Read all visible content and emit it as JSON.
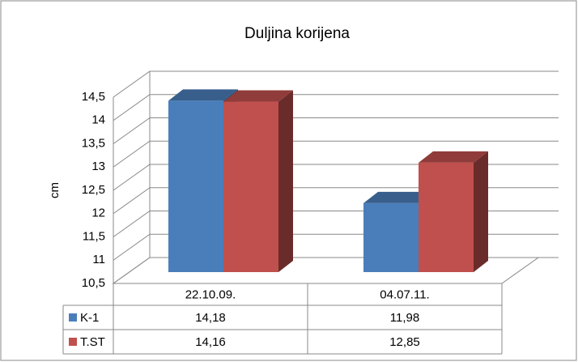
{
  "chart_data": {
    "type": "bar",
    "title": "Duljina korijena",
    "y_label": "cm",
    "categories": [
      "22.10.09.",
      "04.07.11."
    ],
    "series": [
      {
        "name": "K-1",
        "color": "#4a7ebb",
        "values": [
          14.18,
          11.98
        ],
        "value_labels": [
          "14,18",
          "11,98"
        ]
      },
      {
        "name": "T.ST",
        "color": "#c0504d",
        "values": [
          14.16,
          12.85
        ],
        "value_labels": [
          "14,16",
          "12,85"
        ]
      }
    ],
    "ylim": [
      10.5,
      14.5
    ],
    "yticks": [
      {
        "value": 10.5,
        "label": "10,5"
      },
      11,
      {
        "value": 11.5,
        "label": "11,5"
      },
      12,
      {
        "value": 12.5,
        "label": "12,5"
      },
      13,
      {
        "value": 13.5,
        "label": "13,5"
      },
      14,
      {
        "value": 14.5,
        "label": "14,5"
      }
    ],
    "grid": true,
    "data_table": true
  }
}
